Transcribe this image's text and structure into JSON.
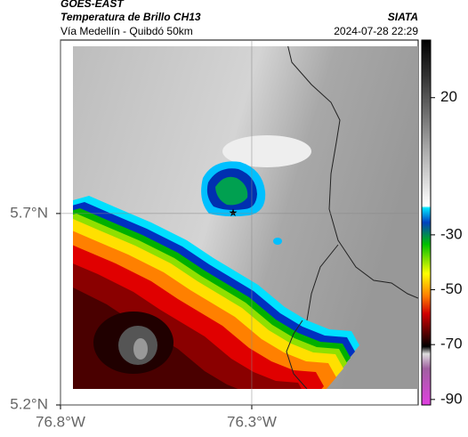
{
  "chart_data": {
    "type": "map",
    "title": "GOES-EAST",
    "subtitle": "Temperatura de Brillo CH13",
    "source": "SIATA",
    "caption": "Vía Medellín - Quibdó 50km",
    "timestamp": "2024-07-28 22:29",
    "xlim": [
      -76.8,
      -75.865
    ],
    "ylim": [
      5.2,
      6.153
    ],
    "xticks": [
      {
        "value": -76.8,
        "label": "76.8°W"
      },
      {
        "value": -76.3,
        "label": "76.3°W"
      }
    ],
    "yticks": [
      {
        "value": 5.2,
        "label": "5.2°N"
      },
      {
        "value": 5.7,
        "label": "5.7°N"
      }
    ],
    "grid": true,
    "colorbar": {
      "lim": [
        -92,
        41
      ],
      "ticks": [
        20,
        -30,
        -50,
        -70,
        -90
      ]
    }
  }
}
